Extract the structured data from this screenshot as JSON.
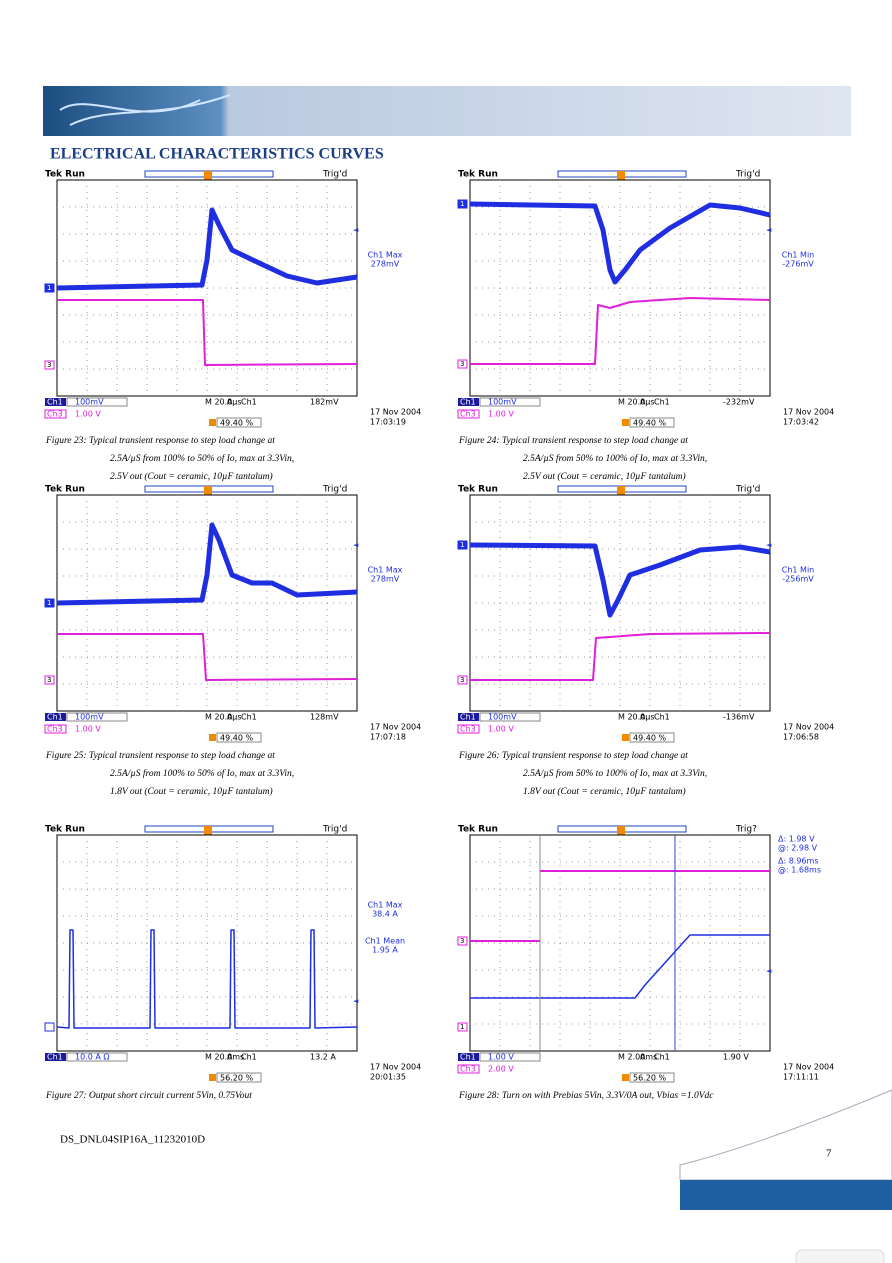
{
  "header": {
    "title": "ELECTRICAL CHARACTERISTICS CURVES"
  },
  "scopes": [
    {
      "status": "Tek Run",
      "trig": "Trig'd",
      "markers": [
        "1",
        "3"
      ],
      "readout": [
        "Ch1 Max",
        "278mV"
      ],
      "row1": [
        "Ch1",
        "100mV",
        "M 20.0µs",
        "A",
        "Ch1",
        "182mV"
      ],
      "row2": [
        "Ch3",
        "1.00 V"
      ],
      "trig_pos": "49.40 %",
      "date": "17 Nov 2004",
      "time": "17:03:19",
      "caption": [
        "Figure 23: Typical transient response to step load change at",
        "2.5A/µS from 100% to 50% of Io, max at 3.3Vin,",
        "2.5V out     (Cout = ceramic, 10µF tantalum)"
      ]
    },
    {
      "status": "Tek Run",
      "trig": "Trig'd",
      "markers": [
        "1",
        "3"
      ],
      "readout": [
        "Ch1 Min",
        "-276mV"
      ],
      "row1": [
        "Ch1",
        "100mV",
        "M 20.0µs",
        "A",
        "Ch1",
        "-232mV"
      ],
      "row2": [
        "Ch3",
        "1.00 V"
      ],
      "trig_pos": "49.40 %",
      "date": "17 Nov 2004",
      "time": "17:03:42",
      "caption": [
        "Figure 24: Typical transient response to step load change at",
        "2.5A/µS from 50% to 100% of Io, max at 3.3Vin,",
        "2.5V out     (Cout = ceramic, 10µF tantalum)"
      ]
    },
    {
      "status": "Tek Run",
      "trig": "Trig'd",
      "markers": [
        "1",
        "3"
      ],
      "readout": [
        "Ch1 Max",
        "278mV"
      ],
      "row1": [
        "Ch1",
        "100mV",
        "M 20.0µs",
        "A",
        "Ch1",
        "128mV"
      ],
      "row2": [
        "Ch3",
        "1.00 V"
      ],
      "trig_pos": "49.40 %",
      "date": "17 Nov 2004",
      "time": "17:07:18",
      "caption": [
        "Figure 25: Typical transient response to step load change at",
        "2.5A/µS from 100% to 50% of Io, max at 3.3Vin,",
        "1.8V out     (Cout = ceramic, 10µF tantalum)"
      ]
    },
    {
      "status": "Tek Run",
      "trig": "Trig'd",
      "markers": [
        "1",
        "3"
      ],
      "readout": [
        "Ch1 Min",
        "-256mV"
      ],
      "row1": [
        "Ch1",
        "100mV",
        "M 20.0µs",
        "A",
        "Ch1",
        "-136mV"
      ],
      "row2": [
        "Ch3",
        "1.00 V"
      ],
      "trig_pos": "49.40 %",
      "date": "17 Nov 2004",
      "time": "17:06:58",
      "caption": [
        "Figure 26: Typical transient response to step load change at",
        "2.5A/µS from 50% to 100% of Io, max at 3.3Vin,",
        "1.8V out     (Cout = ceramic, 10µF tantalum)"
      ]
    },
    {
      "status": "Tek Run",
      "trig": "Trig'd",
      "markers": [
        "1"
      ],
      "readout": [
        "Ch1 Max",
        "38.4 A",
        "Ch1 Mean",
        "1.95 A"
      ],
      "row1": [
        "Ch1",
        "10.0 A Ω",
        "M 20.0ms",
        "A",
        "Ch1",
        "13.2 A"
      ],
      "row2": [],
      "trig_pos": "56.20 %",
      "date": "17 Nov 2004",
      "time": "20:01:35",
      "caption": [
        "Figure 27: Output short circuit current 5Vin, 0.75Vout"
      ]
    },
    {
      "status": "Tek Run",
      "trig": "Trig?",
      "markers": [
        "3",
        "1"
      ],
      "readout": [
        "Δ:   1.98 V",
        "@:   2.98 V",
        "Δ:  8.96ms",
        "@:  1.68ms"
      ],
      "row1": [
        "Ch1",
        "1.00 V",
        "M 2.00ms",
        "A",
        "Ch1",
        "1.90 V"
      ],
      "row2": [
        "Ch3",
        "2.00 V"
      ],
      "trig_pos": "56.20 %",
      "date": "17 Nov 2004",
      "time": "17:11:11",
      "caption": [
        "Figure 28: Turn on with Prebias 5Vin, 3.3V/0A out, Vbias =1.0Vdc"
      ]
    }
  ],
  "footer": {
    "doc_id": "DS_DNL04SIP16A_11232010D",
    "page": "7"
  }
}
